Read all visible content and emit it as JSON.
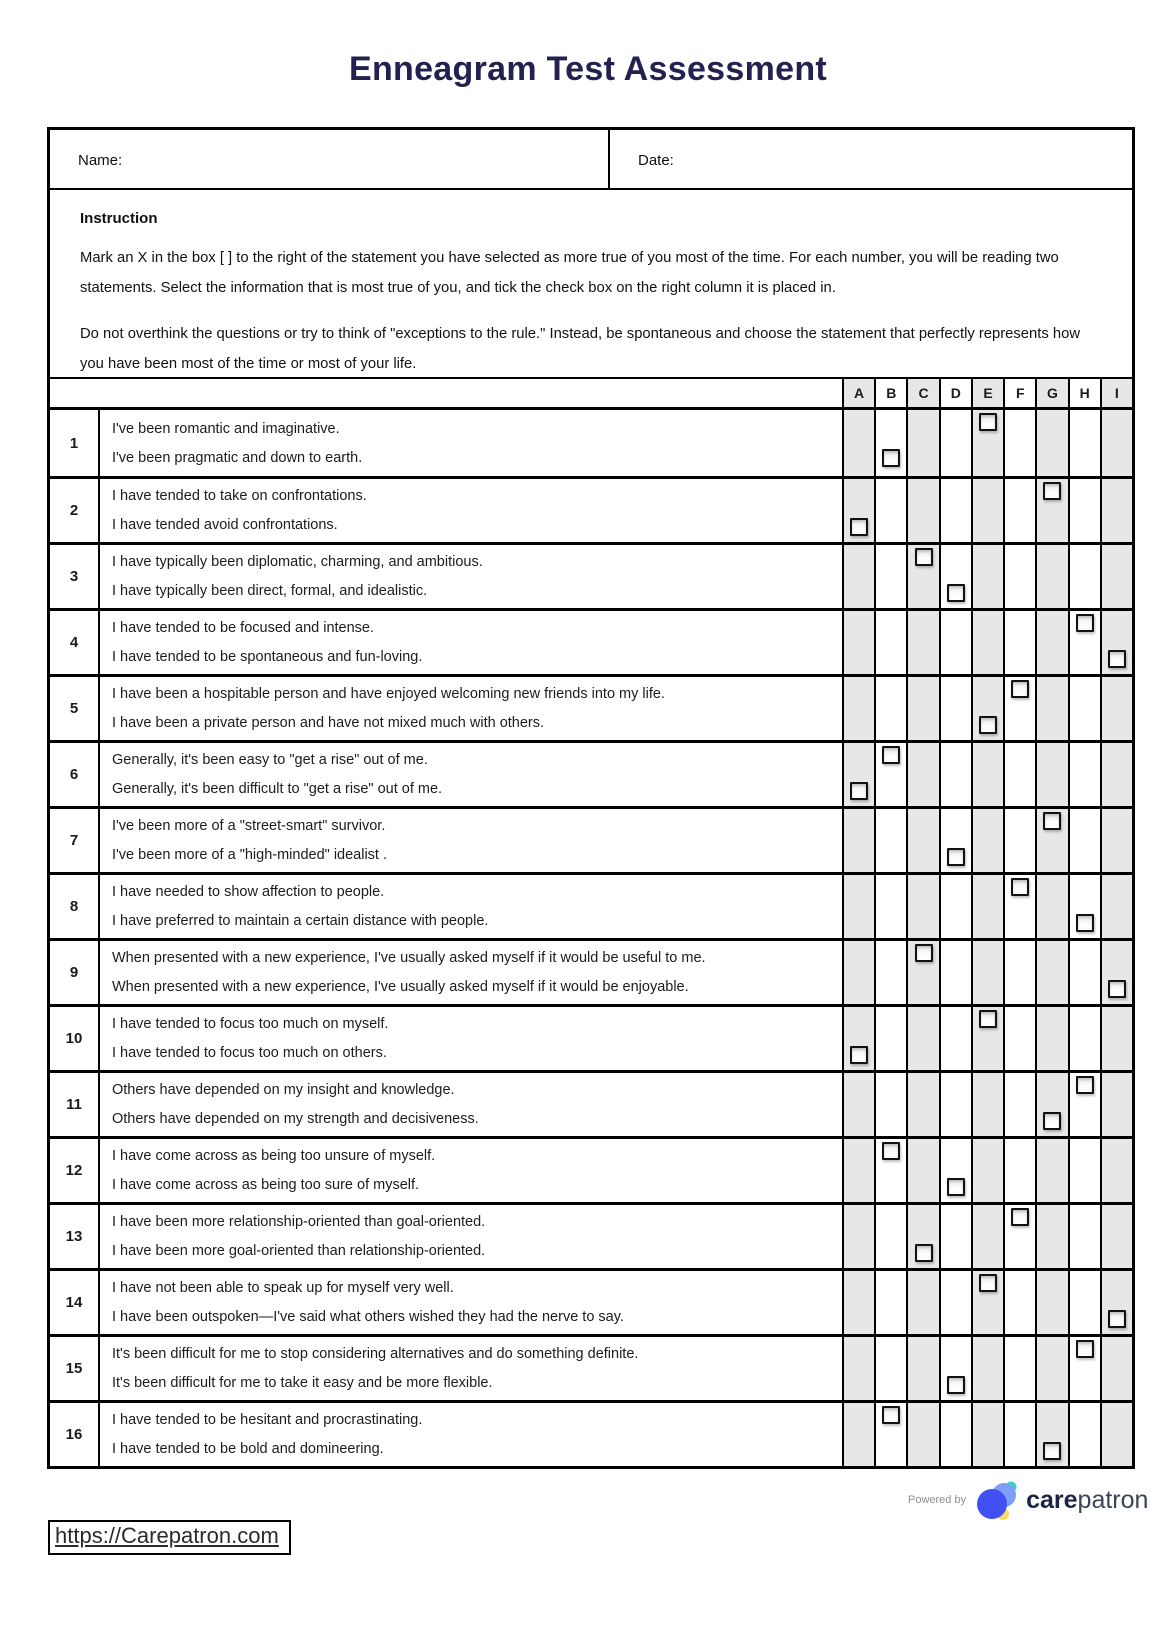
{
  "page": {
    "title": "Enneagram Test Assessment",
    "title_color": "#232150"
  },
  "header_fields": {
    "name_label": "Name:",
    "date_label": "Date:"
  },
  "instruction": {
    "heading": "Instruction",
    "paragraph1": "Mark an X in the box [ ] to the right of the statement you have selected as more true of you most of the time. For each number, you will be reading two statements. Select the information that is most true of you, and tick the check box on the right column it is placed in.",
    "paragraph2": "Do not overthink the questions or try to think of \"exceptions to the rule.\" Instead, be spontaneous and choose the statement that perfectly represents how you have been most of the time or most of your life."
  },
  "table": {
    "columns": [
      "A",
      "B",
      "C",
      "D",
      "E",
      "F",
      "G",
      "H",
      "I"
    ],
    "shaded_columns": [
      "A",
      "C",
      "E",
      "G",
      "I"
    ],
    "shaded_color": "#e7e7e7",
    "rows": [
      {
        "number": "1",
        "statements": [
          {
            "text": "I've been romantic and imaginative.",
            "checkbox_column": "E"
          },
          {
            "text": "I've been pragmatic and down to earth.",
            "checkbox_column": "B"
          }
        ]
      },
      {
        "number": "2",
        "statements": [
          {
            "text": "I have tended to take on confrontations.",
            "checkbox_column": "G"
          },
          {
            "text": "I have tended avoid confrontations.",
            "checkbox_column": "A"
          }
        ]
      },
      {
        "number": "3",
        "statements": [
          {
            "text": "I have typically been diplomatic, charming, and ambitious.",
            "checkbox_column": "C"
          },
          {
            "text": "I have typically been direct, formal, and idealistic.",
            "checkbox_column": "D"
          }
        ]
      },
      {
        "number": "4",
        "statements": [
          {
            "text": "I have tended to be focused and intense.",
            "checkbox_column": "H"
          },
          {
            "text": "I have tended to be spontaneous and fun-loving.",
            "checkbox_column": "I"
          }
        ]
      },
      {
        "number": "5",
        "statements": [
          {
            "text": "I have been a hospitable person and have enjoyed welcoming new friends into my life.",
            "checkbox_column": "F"
          },
          {
            "text": "I have been a private person and have not mixed much with others.",
            "checkbox_column": "E"
          }
        ]
      },
      {
        "number": "6",
        "statements": [
          {
            "text": "Generally, it's been easy to \"get a rise\" out of me.",
            "checkbox_column": "B"
          },
          {
            "text": "Generally, it's been difficult to \"get a rise\" out of me.",
            "checkbox_column": "A"
          }
        ]
      },
      {
        "number": "7",
        "statements": [
          {
            "text": "I've been more of a \"street-smart\" survivor.",
            "checkbox_column": "G"
          },
          {
            "text": "I've been more of a \"high-minded\" idealist .",
            "checkbox_column": "D"
          }
        ]
      },
      {
        "number": "8",
        "statements": [
          {
            "text": "I have needed to show affection to people.",
            "checkbox_column": "F"
          },
          {
            "text": "I have preferred to maintain a certain distance with people.",
            "checkbox_column": "H"
          }
        ]
      },
      {
        "number": "9",
        "statements": [
          {
            "text": "When presented with a new experience, I've usually asked myself if it would be useful to me.",
            "checkbox_column": "C"
          },
          {
            "text": "When presented with a new experience, I've usually asked myself if it would be enjoyable.",
            "checkbox_column": "I"
          }
        ]
      },
      {
        "number": "10",
        "statements": [
          {
            "text": "I have tended to focus too much on myself.",
            "checkbox_column": "E"
          },
          {
            "text": "I have tended to focus too much on others.",
            "checkbox_column": "A"
          }
        ]
      },
      {
        "number": "11",
        "statements": [
          {
            "text": "Others have depended on my insight and knowledge.",
            "checkbox_column": "H"
          },
          {
            "text": "Others have depended on my strength and decisiveness.",
            "checkbox_column": "G"
          }
        ]
      },
      {
        "number": "12",
        "statements": [
          {
            "text": "I have come across as being too unsure of myself.",
            "checkbox_column": "B"
          },
          {
            "text": "I have come across as being too sure of myself.",
            "checkbox_column": "D"
          }
        ]
      },
      {
        "number": "13",
        "statements": [
          {
            "text": "I have been more relationship-oriented than goal-oriented.",
            "checkbox_column": "F"
          },
          {
            "text": "I have been more goal-oriented than relationship-oriented.",
            "checkbox_column": "C"
          }
        ]
      },
      {
        "number": "14",
        "statements": [
          {
            "text": "I have not been able to speak up for myself very well.",
            "checkbox_column": "E"
          },
          {
            "text": "I have been outspoken—I've said what others wished they had the nerve to say.",
            "checkbox_column": "I"
          }
        ]
      },
      {
        "number": "15",
        "statements": [
          {
            "text": "It's been difficult for me to stop considering alternatives and do something definite.",
            "checkbox_column": "H"
          },
          {
            "text": "It's been difficult for me to take it easy and be more flexible.",
            "checkbox_column": "D"
          }
        ]
      },
      {
        "number": "16",
        "statements": [
          {
            "text": "I have tended to be hesitant and procrastinating.",
            "checkbox_column": "B"
          },
          {
            "text": "I have tended to be bold and domineering.",
            "checkbox_column": "G"
          }
        ]
      }
    ]
  },
  "footer": {
    "link_text": "https://Carepatron.com",
    "powered_by": "Powered by",
    "brand_bold": "care",
    "brand_light": "patron",
    "logo": "carepatron-logo",
    "logo_blue": "#4050f2",
    "logo_light_blue": "#7e9ef8",
    "logo_teal": "#40cfc0",
    "logo_yellow": "#ffd95e"
  }
}
